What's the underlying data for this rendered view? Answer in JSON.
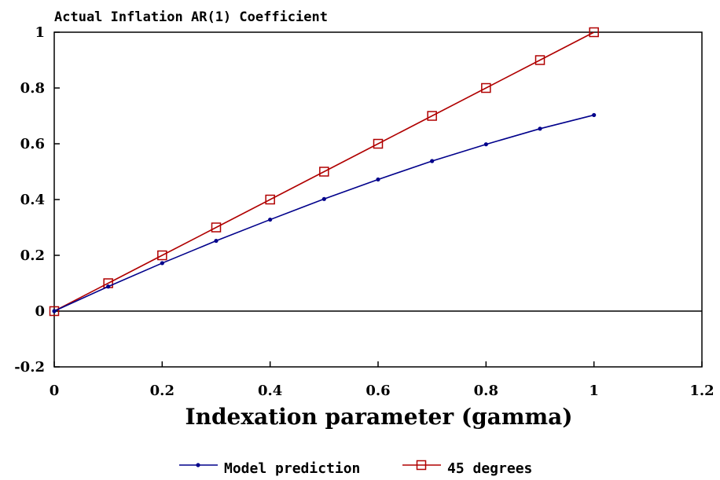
{
  "chart_data": {
    "type": "line",
    "title": "Actual Inflation AR(1) Coefficient",
    "xlabel": "Indexation parameter (gamma)",
    "ylabel": "",
    "xlim": [
      0,
      1.2
    ],
    "ylim": [
      -0.2,
      1
    ],
    "xticks": [
      "0",
      "0.2",
      "0.4",
      "0.6",
      "0.8",
      "1",
      "1.2"
    ],
    "xtick_values": [
      0,
      0.2,
      0.4,
      0.6,
      0.8,
      1.0,
      1.2
    ],
    "yticks": [
      "-0.2",
      "0",
      "0.2",
      "0.4",
      "0.6",
      "0.8",
      "1"
    ],
    "ytick_values": [
      -0.2,
      0,
      0.2,
      0.4,
      0.6,
      0.8,
      1.0
    ],
    "zero_line": true,
    "grid": false,
    "legend_position": "bottom",
    "x": [
      0,
      0.1,
      0.2,
      0.3,
      0.4,
      0.5,
      0.6,
      0.7,
      0.8,
      0.9,
      1.0
    ],
    "series": [
      {
        "name": "Model prediction",
        "color": "#00008B",
        "marker": "dot",
        "values": [
          0,
          0.088,
          0.172,
          0.252,
          0.328,
          0.402,
          0.472,
          0.538,
          0.598,
          0.654,
          0.703
        ]
      },
      {
        "name": "45 degrees",
        "color": "#B00000",
        "marker": "open-square",
        "values": [
          0,
          0.1,
          0.2,
          0.3,
          0.4,
          0.5,
          0.6,
          0.7,
          0.8,
          0.9,
          1.0
        ]
      }
    ]
  }
}
